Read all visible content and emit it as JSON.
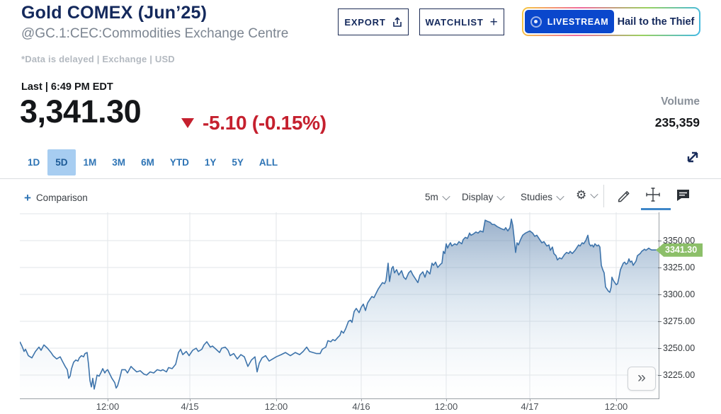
{
  "header": {
    "title": "Gold COMEX (Jun’25)",
    "subtitle": "@GC.1:CEC:Commodities Exchange Centre",
    "meta": "*Data is delayed | Exchange | USD",
    "export_label": "EXPORT",
    "watchlist_label": "WATCHLIST",
    "livestream_label": "LIVESTREAM",
    "livestream_title": "Hail to the Thief"
  },
  "quote": {
    "last_label": "Last | 6:49 PM EDT",
    "price": "3,341.30",
    "change": "-5.10 (-0.15%)",
    "direction": "down",
    "volume_label": "Volume",
    "volume_value": "235,359"
  },
  "ranges": {
    "items": [
      "1D",
      "5D",
      "1M",
      "3M",
      "6M",
      "YTD",
      "1Y",
      "5Y",
      "ALL"
    ],
    "selected": "5D"
  },
  "toolbar": {
    "comparison_label": "Comparison",
    "interval": "5m",
    "display_label": "Display",
    "studies_label": "Studies"
  },
  "icons": {
    "plus": "+",
    "gear": "⚙",
    "more": "»"
  },
  "chart_data": {
    "type": "area",
    "title": "Gold COMEX (Jun'25) 5-day, 5-minute intervals, USD",
    "x_unit": "plot px (0-902, ~10 px per hour, 4/14 00:00 to 4/17 18:00)",
    "ylim": [
      3203.3,
      3376.3
    ],
    "grid": true,
    "line_color": "#3e74ab",
    "fill_top_color": "#4870a0",
    "badge_color": "#8cbf69",
    "last_price": 3341.3,
    "last_price_label": "3341.30",
    "x_ticks": [
      {
        "pos": 124,
        "label": "12:00"
      },
      {
        "pos": 240,
        "label": "4/15"
      },
      {
        "pos": 362,
        "label": "12:00"
      },
      {
        "pos": 482,
        "label": "4/16"
      },
      {
        "pos": 602,
        "label": "12:00"
      },
      {
        "pos": 720,
        "label": "4/17"
      },
      {
        "pos": 842,
        "label": "12:00"
      }
    ],
    "y_ticks": [
      {
        "value": 3375,
        "label": ""
      },
      {
        "value": 3350,
        "label": "3350.00"
      },
      {
        "value": 3325,
        "label": "3325.00"
      },
      {
        "value": 3300,
        "label": "3300.00"
      },
      {
        "value": 3275,
        "label": "3275.00"
      },
      {
        "value": 3250,
        "label": "3250.00"
      },
      {
        "value": 3225,
        "label": "3225.00"
      }
    ],
    "points": [
      [
        0,
        3256
      ],
      [
        3,
        3252
      ],
      [
        6,
        3247
      ],
      [
        8,
        3249
      ],
      [
        12,
        3243
      ],
      [
        17,
        3241
      ],
      [
        22,
        3247
      ],
      [
        27,
        3251
      ],
      [
        30,
        3248
      ],
      [
        34,
        3253
      ],
      [
        39,
        3250
      ],
      [
        44,
        3246
      ],
      [
        47,
        3243
      ],
      [
        52,
        3240
      ],
      [
        57,
        3242
      ],
      [
        60,
        3238
      ],
      [
        64,
        3233
      ],
      [
        67,
        3230
      ],
      [
        69,
        3222
      ],
      [
        71,
        3224
      ],
      [
        73,
        3231
      ],
      [
        76,
        3237
      ],
      [
        79,
        3239
      ],
      [
        82,
        3238
      ],
      [
        84,
        3241
      ],
      [
        87,
        3243
      ],
      [
        90,
        3242
      ],
      [
        92,
        3245
      ],
      [
        95,
        3246
      ],
      [
        97,
        3235
      ],
      [
        99,
        3220
      ],
      [
        101,
        3214
      ],
      [
        103,
        3222
      ],
      [
        105,
        3212
      ],
      [
        107,
        3218
      ],
      [
        109,
        3225
      ],
      [
        112,
        3224
      ],
      [
        115,
        3228
      ],
      [
        117,
        3231
      ],
      [
        120,
        3227
      ],
      [
        122,
        3229
      ],
      [
        124,
        3230
      ],
      [
        127,
        3226
      ],
      [
        130,
        3222
      ],
      [
        134,
        3218
      ],
      [
        136,
        3213
      ],
      [
        138,
        3215
      ],
      [
        141,
        3222
      ],
      [
        144,
        3230
      ],
      [
        149,
        3230
      ],
      [
        152,
        3227
      ],
      [
        157,
        3233
      ],
      [
        160,
        3231
      ],
      [
        165,
        3228
      ],
      [
        170,
        3229
      ],
      [
        175,
        3226
      ],
      [
        179,
        3225
      ],
      [
        184,
        3228
      ],
      [
        189,
        3227
      ],
      [
        194,
        3230
      ],
      [
        199,
        3229
      ],
      [
        202,
        3230
      ],
      [
        207,
        3228
      ],
      [
        210,
        3232
      ],
      [
        215,
        3231
      ],
      [
        220,
        3235
      ],
      [
        224,
        3246
      ],
      [
        227,
        3249
      ],
      [
        230,
        3244
      ],
      [
        235,
        3247
      ],
      [
        239,
        3243
      ],
      [
        244,
        3248
      ],
      [
        249,
        3250
      ],
      [
        252,
        3247
      ],
      [
        257,
        3249
      ],
      [
        260,
        3253
      ],
      [
        264,
        3256
      ],
      [
        269,
        3251
      ],
      [
        272,
        3252
      ],
      [
        277,
        3249
      ],
      [
        282,
        3246
      ],
      [
        285,
        3250
      ],
      [
        290,
        3251
      ],
      [
        294,
        3248
      ],
      [
        297,
        3243
      ],
      [
        302,
        3245
      ],
      [
        307,
        3240
      ],
      [
        312,
        3244
      ],
      [
        317,
        3242
      ],
      [
        322,
        3233
      ],
      [
        327,
        3239
      ],
      [
        332,
        3242
      ],
      [
        335,
        3228
      ],
      [
        338,
        3236
      ],
      [
        342,
        3241
      ],
      [
        347,
        3243
      ],
      [
        352,
        3238
      ],
      [
        357,
        3240
      ],
      [
        362,
        3242
      ],
      [
        369,
        3244
      ],
      [
        375,
        3246
      ],
      [
        382,
        3243
      ],
      [
        389,
        3246
      ],
      [
        395,
        3244
      ],
      [
        400,
        3247
      ],
      [
        405,
        3251
      ],
      [
        409,
        3247
      ],
      [
        414,
        3246
      ],
      [
        419,
        3245
      ],
      [
        424,
        3245
      ],
      [
        427,
        3249
      ],
      [
        432,
        3251
      ],
      [
        435,
        3257
      ],
      [
        439,
        3256
      ],
      [
        442,
        3258
      ],
      [
        445,
        3257
      ],
      [
        449,
        3260
      ],
      [
        452,
        3262
      ],
      [
        454,
        3266
      ],
      [
        457,
        3264
      ],
      [
        460,
        3268
      ],
      [
        464,
        3275
      ],
      [
        467,
        3276
      ],
      [
        469,
        3274
      ],
      [
        472,
        3284
      ],
      [
        475,
        3287
      ],
      [
        479,
        3283
      ],
      [
        482,
        3288
      ],
      [
        485,
        3291
      ],
      [
        488,
        3285
      ],
      [
        491,
        3292
      ],
      [
        494,
        3295
      ],
      [
        497,
        3298
      ],
      [
        500,
        3297
      ],
      [
        503,
        3301
      ],
      [
        506,
        3305
      ],
      [
        509,
        3308
      ],
      [
        512,
        3311
      ],
      [
        515,
        3310
      ],
      [
        517,
        3313
      ],
      [
        520,
        3329
      ],
      [
        522,
        3312
      ],
      [
        525,
        3324
      ],
      [
        527,
        3326
      ],
      [
        529,
        3320
      ],
      [
        532,
        3323
      ],
      [
        535,
        3318
      ],
      [
        539,
        3322
      ],
      [
        542,
        3316
      ],
      [
        545,
        3314
      ],
      [
        549,
        3320
      ],
      [
        552,
        3322
      ],
      [
        555,
        3318
      ],
      [
        559,
        3314
      ],
      [
        562,
        3311
      ],
      [
        565,
        3318
      ],
      [
        569,
        3321
      ],
      [
        572,
        3316
      ],
      [
        575,
        3322
      ],
      [
        579,
        3319
      ],
      [
        582,
        3329
      ],
      [
        584,
        3327
      ],
      [
        587,
        3330
      ],
      [
        590,
        3325
      ],
      [
        594,
        3328
      ],
      [
        596,
        3329
      ],
      [
        598,
        3340
      ],
      [
        600,
        3338
      ],
      [
        602,
        3347
      ],
      [
        604,
        3343
      ],
      [
        606,
        3346
      ],
      [
        608,
        3348
      ],
      [
        610,
        3345
      ],
      [
        614,
        3347
      ],
      [
        617,
        3346
      ],
      [
        620,
        3349
      ],
      [
        624,
        3347
      ],
      [
        626,
        3351
      ],
      [
        629,
        3353
      ],
      [
        632,
        3352
      ],
      [
        635,
        3357
      ],
      [
        637,
        3355
      ],
      [
        640,
        3356
      ],
      [
        644,
        3358
      ],
      [
        647,
        3357
      ],
      [
        650,
        3359
      ],
      [
        654,
        3358
      ],
      [
        657,
        3369
      ],
      [
        660,
        3368
      ],
      [
        664,
        3367
      ],
      [
        667,
        3365
      ],
      [
        670,
        3365
      ],
      [
        674,
        3363
      ],
      [
        677,
        3362
      ],
      [
        680,
        3361
      ],
      [
        684,
        3360
      ],
      [
        686,
        3362
      ],
      [
        689,
        3359
      ],
      [
        692,
        3362
      ],
      [
        694,
        3370
      ],
      [
        696,
        3364
      ],
      [
        698,
        3352
      ],
      [
        700,
        3339
      ],
      [
        702,
        3348
      ],
      [
        704,
        3346
      ],
      [
        707,
        3351
      ],
      [
        710,
        3355
      ],
      [
        714,
        3357
      ],
      [
        717,
        3358
      ],
      [
        720,
        3359
      ],
      [
        724,
        3357
      ],
      [
        727,
        3354
      ],
      [
        730,
        3355
      ],
      [
        734,
        3351
      ],
      [
        737,
        3348
      ],
      [
        740,
        3349
      ],
      [
        744,
        3345
      ],
      [
        747,
        3346
      ],
      [
        749,
        3341
      ],
      [
        752,
        3344
      ],
      [
        754,
        3338
      ],
      [
        757,
        3336
      ],
      [
        759,
        3332
      ],
      [
        762,
        3334
      ],
      [
        765,
        3333
      ],
      [
        769,
        3337
      ],
      [
        772,
        3339
      ],
      [
        775,
        3338
      ],
      [
        777,
        3340
      ],
      [
        780,
        3338
      ],
      [
        784,
        3341
      ],
      [
        787,
        3344
      ],
      [
        789,
        3346
      ],
      [
        791,
        3345
      ],
      [
        794,
        3348
      ],
      [
        796,
        3347
      ],
      [
        799,
        3350
      ],
      [
        802,
        3355
      ],
      [
        804,
        3347
      ],
      [
        806,
        3345
      ],
      [
        808,
        3346
      ],
      [
        810,
        3344
      ],
      [
        812,
        3347
      ],
      [
        815,
        3345
      ],
      [
        817,
        3346
      ],
      [
        819,
        3344
      ],
      [
        821,
        3327
      ],
      [
        823,
        3323
      ],
      [
        825,
        3320
      ],
      [
        827,
        3307
      ],
      [
        829,
        3305
      ],
      [
        831,
        3303
      ],
      [
        833,
        3302
      ],
      [
        835,
        3307
      ],
      [
        836,
        3316
      ],
      [
        838,
        3313
      ],
      [
        840,
        3311
      ],
      [
        842,
        3309
      ],
      [
        844,
        3310
      ],
      [
        846,
        3316
      ],
      [
        848,
        3323
      ],
      [
        850,
        3326
      ],
      [
        852,
        3329
      ],
      [
        854,
        3330
      ],
      [
        856,
        3328
      ],
      [
        858,
        3329
      ],
      [
        860,
        3333
      ],
      [
        862,
        3330
      ],
      [
        864,
        3331
      ],
      [
        866,
        3327
      ],
      [
        868,
        3329
      ],
      [
        870,
        3331
      ],
      [
        872,
        3336
      ],
      [
        874,
        3337
      ],
      [
        876,
        3338
      ],
      [
        878,
        3340
      ],
      [
        880,
        3341
      ],
      [
        882,
        3342
      ],
      [
        884,
        3341
      ],
      [
        886,
        3342
      ],
      [
        888,
        3343
      ],
      [
        890,
        3342
      ],
      [
        892,
        3341.3
      ],
      [
        898,
        3341.3
      ],
      [
        902,
        3341.3
      ]
    ]
  }
}
